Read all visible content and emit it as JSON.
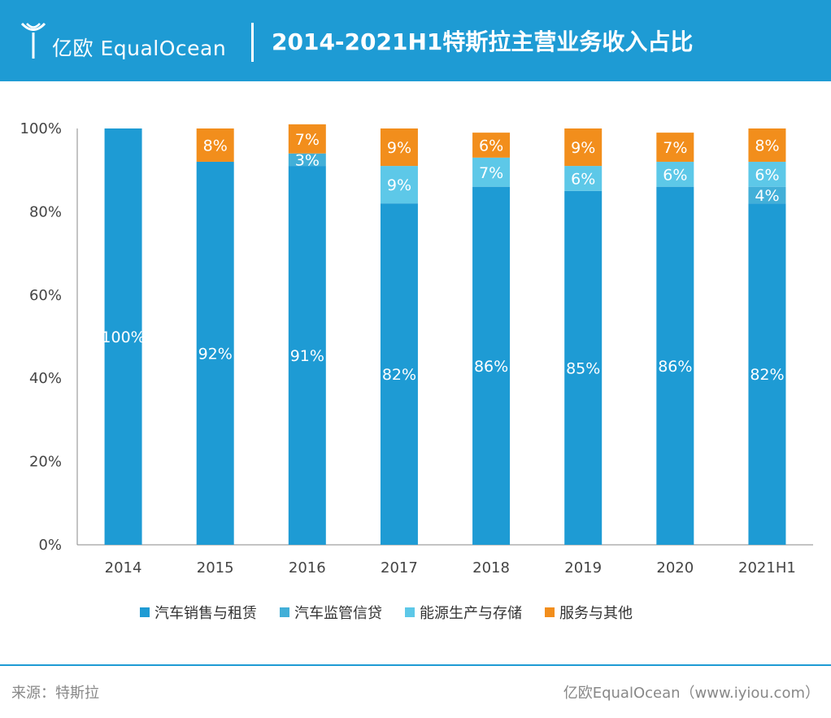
{
  "header": {
    "logo_text": "亿欧 EqualOcean",
    "title": "2014-2021H1特斯拉主营业务收入占比",
    "colors": {
      "background": "#1e9bd4",
      "text": "#ffffff"
    }
  },
  "chart_data": {
    "type": "bar",
    "stacked": true,
    "title": "2014-2021H1特斯拉主营业务收入占比",
    "categories": [
      "2014",
      "2015",
      "2016",
      "2017",
      "2018",
      "2019",
      "2020",
      "2021H1"
    ],
    "ylim": [
      0,
      100
    ],
    "yticks": [
      "0%",
      "20%",
      "40%",
      "60%",
      "80%",
      "100%"
    ],
    "grid": false,
    "legend_position": "bottom",
    "series": [
      {
        "name": "汽车销售与租赁",
        "color": "#1e9bd4",
        "values": [
          100,
          92,
          91,
          82,
          86,
          85,
          86,
          82
        ]
      },
      {
        "name": "汽车监管信贷",
        "color": "#42afd8",
        "values": [
          0,
          0,
          3,
          0,
          0,
          0,
          0,
          4
        ]
      },
      {
        "name": "能源生产与存储",
        "color": "#5dc8e8",
        "values": [
          0,
          0,
          0,
          9,
          7,
          6,
          6,
          6
        ]
      },
      {
        "name": "服务与其他",
        "color": "#f28e1c",
        "values": [
          0,
          8,
          7,
          9,
          6,
          9,
          7,
          8
        ]
      }
    ]
  },
  "footer": {
    "source": "来源：特斯拉",
    "credit": "亿欧EqualOcean（www.iyiou.com）"
  }
}
